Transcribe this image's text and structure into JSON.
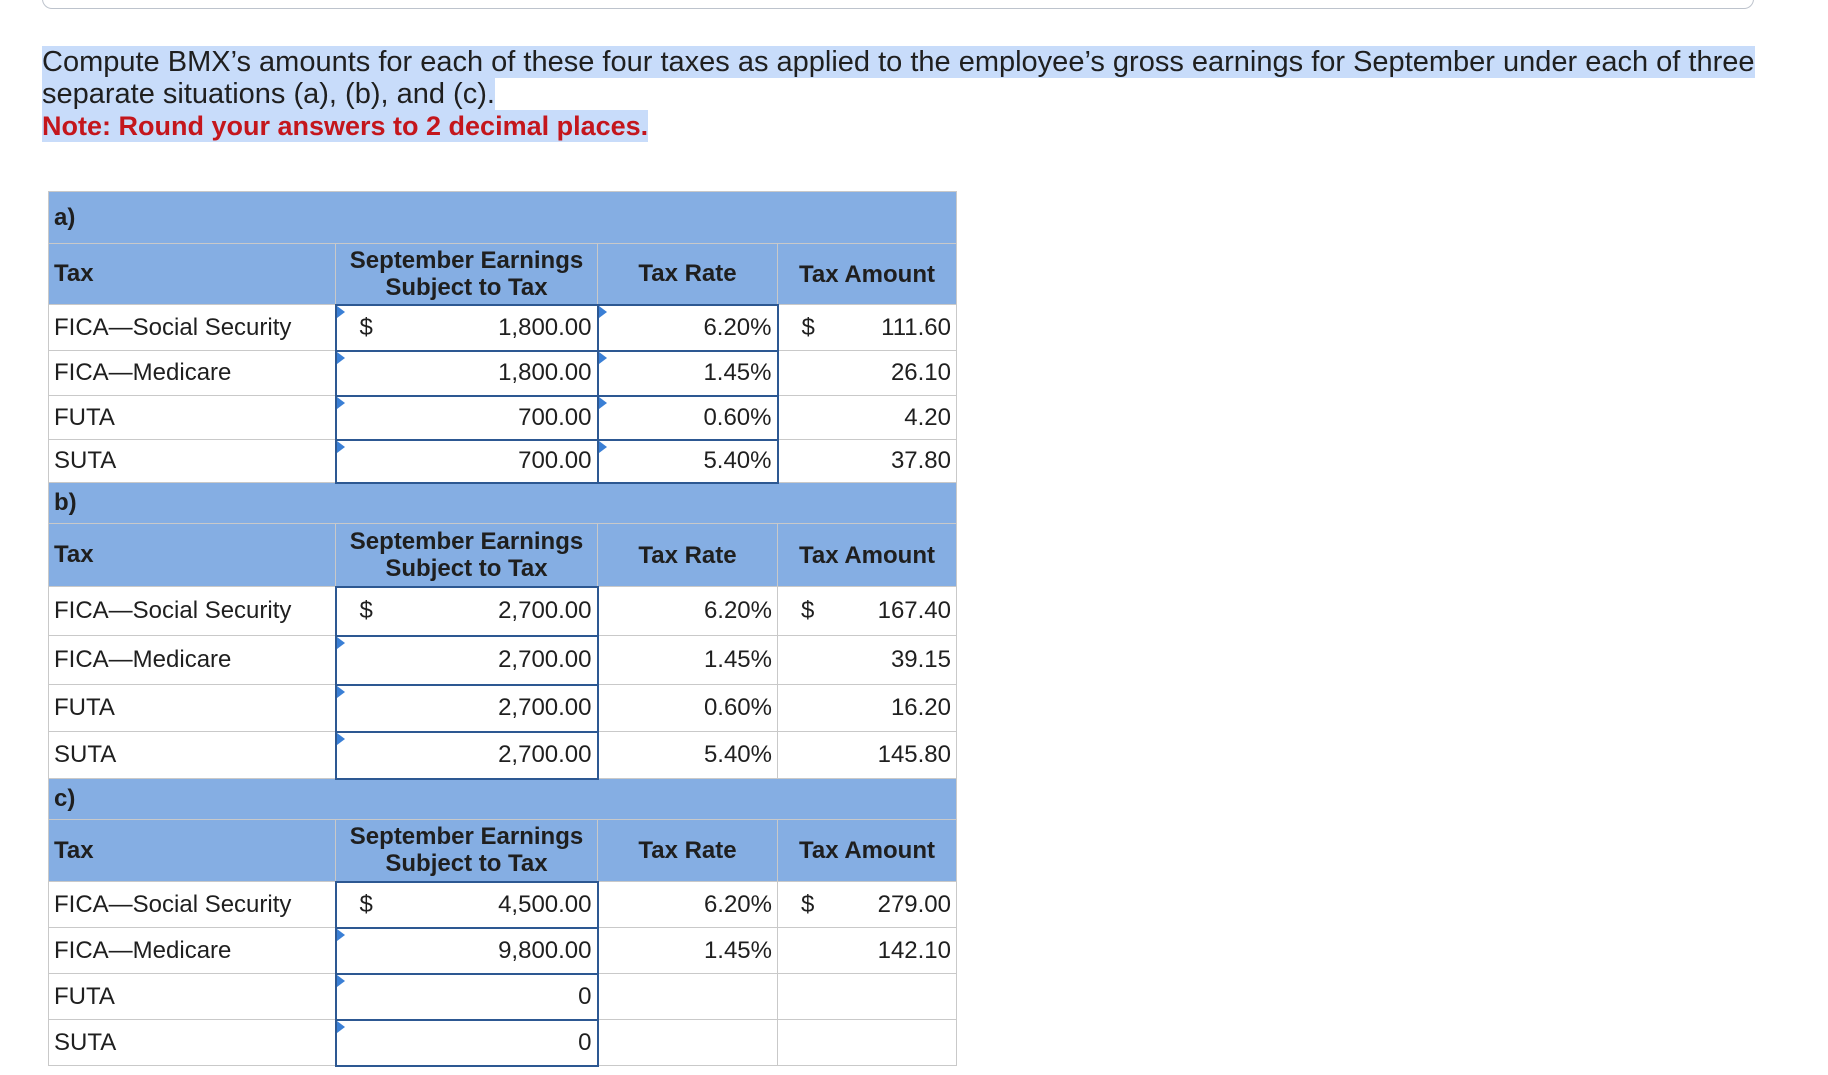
{
  "question": {
    "line1": "Compute BMX’s amounts for each of these four taxes as applied to the employee’s gross earnings for September under each of three",
    "line2": "separate situations (a), (b), and (c).",
    "note": "Note: Round your answers to 2 decimal places."
  },
  "columns": {
    "tax": "Tax",
    "earnings_line1": "September Earnings",
    "earnings_line2": "Subject to Tax",
    "rate": "Tax Rate",
    "amount": "Tax Amount"
  },
  "currency": "$",
  "sections": [
    {
      "label": "a)",
      "rows": [
        {
          "tax": "FICA—Social Security",
          "earnings": "1,800.00",
          "rate": "6.20%",
          "amount": "111.60"
        },
        {
          "tax": "FICA—Medicare",
          "earnings": "1,800.00",
          "rate": "1.45%",
          "amount": "26.10"
        },
        {
          "tax": "FUTA",
          "earnings": "700.00",
          "rate": "0.60%",
          "amount": "4.20"
        },
        {
          "tax": "SUTA",
          "earnings": "700.00",
          "rate": "5.40%",
          "amount": "37.80"
        }
      ]
    },
    {
      "label": "b)",
      "rows": [
        {
          "tax": "FICA—Social Security",
          "earnings": "2,700.00",
          "rate": "6.20%",
          "amount": "167.40"
        },
        {
          "tax": "FICA—Medicare",
          "earnings": "2,700.00",
          "rate": "1.45%",
          "amount": "39.15"
        },
        {
          "tax": "FUTA",
          "earnings": "2,700.00",
          "rate": "0.60%",
          "amount": "16.20"
        },
        {
          "tax": "SUTA",
          "earnings": "2,700.00",
          "rate": "5.40%",
          "amount": "145.80"
        }
      ]
    },
    {
      "label": "c)",
      "rows": [
        {
          "tax": "FICA—Social Security",
          "earnings": "4,500.00",
          "rate": "6.20%",
          "amount": "279.00"
        },
        {
          "tax": "FICA—Medicare",
          "earnings": "9,800.00",
          "rate": "1.45%",
          "amount": "142.10"
        },
        {
          "tax": "FUTA",
          "earnings": "0",
          "rate": "",
          "amount": ""
        },
        {
          "tax": "SUTA",
          "earnings": "0",
          "rate": "",
          "amount": ""
        }
      ]
    }
  ]
}
